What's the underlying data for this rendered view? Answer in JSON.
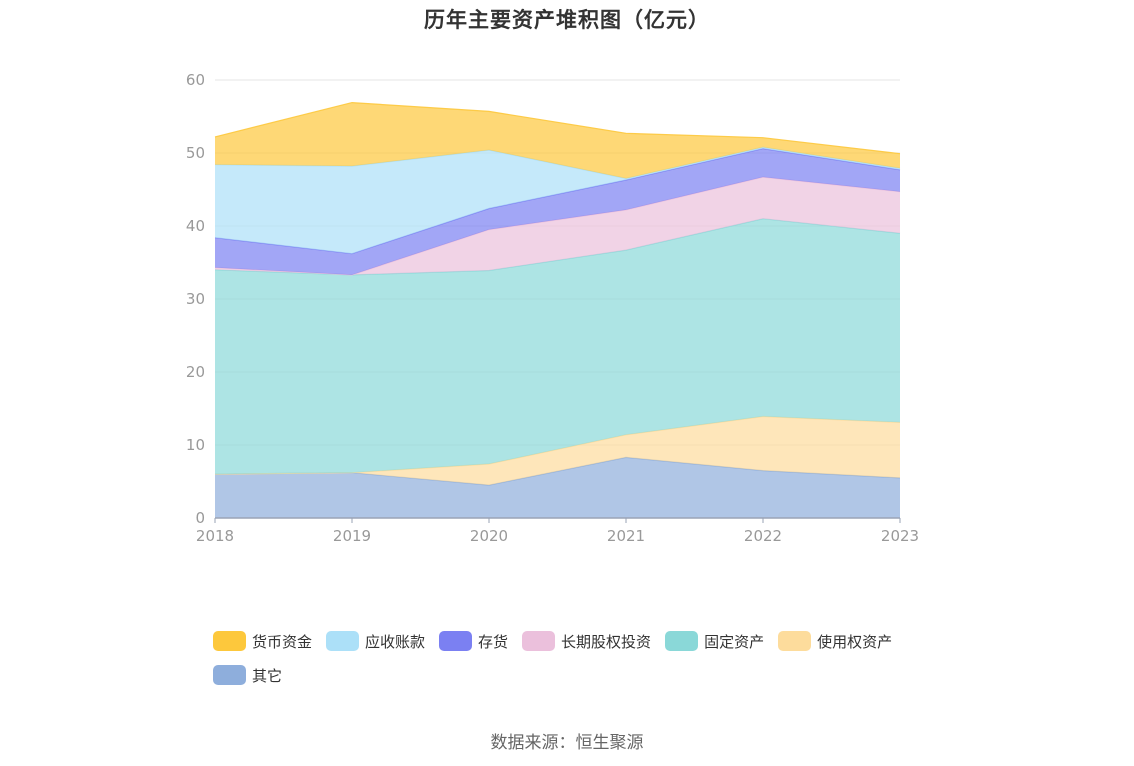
{
  "title": "历年主要资产堆积图（亿元）",
  "source": "数据来源：恒生聚源",
  "chart_data": {
    "type": "area",
    "stacked": true,
    "title": "历年主要资产堆积图（亿元）",
    "x": [
      "2018",
      "2019",
      "2020",
      "2021",
      "2022",
      "2023"
    ],
    "ylim": [
      0,
      60
    ],
    "yticks": [
      0,
      10,
      20,
      30,
      40,
      50,
      60
    ],
    "grid": true,
    "legend_position": "bottom",
    "series": [
      {
        "name": "其它",
        "color": "#8eaedc",
        "values": [
          6.0,
          6.2,
          4.5,
          8.3,
          6.5,
          5.5
        ]
      },
      {
        "name": "使用权资产",
        "color": "#fddc9c",
        "values": [
          0.0,
          0.0,
          2.9,
          3.1,
          7.4,
          7.6
        ]
      },
      {
        "name": "固定资产",
        "color": "#8ad8d8",
        "values": [
          28.0,
          27.1,
          26.5,
          25.3,
          27.1,
          25.9
        ]
      },
      {
        "name": "长期股权投资",
        "color": "#ebc0dc",
        "values": [
          0.3,
          0.0,
          5.6,
          5.5,
          5.7,
          5.7
        ]
      },
      {
        "name": "存货",
        "color": "#7b80f2",
        "values": [
          4.1,
          2.9,
          2.9,
          4.1,
          3.9,
          3.0
        ]
      },
      {
        "name": "应收账款",
        "color": "#ace0f8",
        "values": [
          10.0,
          12.0,
          8.0,
          0.2,
          0.2,
          0.2
        ]
      },
      {
        "name": "货币资金",
        "color": "#fdc83c",
        "values": [
          3.8,
          8.7,
          5.3,
          6.2,
          1.3,
          2.0
        ]
      }
    ]
  },
  "legend_order": [
    "货币资金",
    "应收账款",
    "存货",
    "长期股权投资",
    "固定资产",
    "使用权资产",
    "其它"
  ]
}
